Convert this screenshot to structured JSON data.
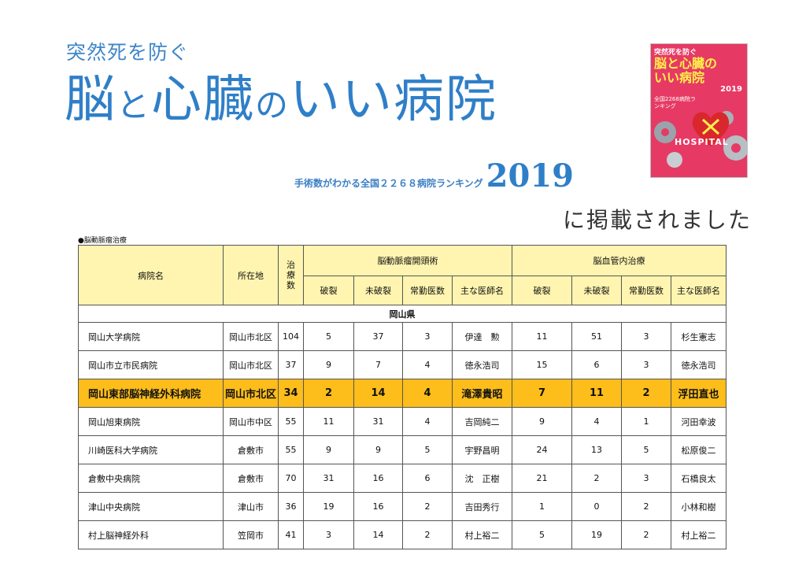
{
  "header": {
    "subtitle": "突然死を防ぐ",
    "title_part1": "脳",
    "title_part2": "と",
    "title_part3": "心臓",
    "title_part4": "の",
    "title_part5": "いい病院",
    "ranking_text": "手術数がわかる全国２２６８病院ランキング",
    "year": "2019",
    "published": "に掲載されました"
  },
  "cover": {
    "top_text": "突然死を防ぐ",
    "title_line1": "脳と心臓の",
    "title_line2": "いい病院",
    "year": "2019",
    "rank_text": "全国2268病院ランキング",
    "hospital_word": "HOSPITAL",
    "heart_color": "#d8282e",
    "accent_color": "#fff04a"
  },
  "section_label": "●脳動脈瘤治療",
  "table": {
    "headers": {
      "hospital": "病院名",
      "location": "所在地",
      "treatments": "治療数",
      "group1": "脳動脈瘤開頭術",
      "group2": "脳血管内治療",
      "rupture": "破裂",
      "unruptured": "未破裂",
      "staff": "常勤医数",
      "doctor": "主な医師名"
    },
    "prefecture": "岡山県",
    "rows": [
      {
        "name": "岡山大学病院",
        "loc": "岡山市北区",
        "n": "104",
        "c1": "5",
        "c2": "37",
        "c3": "3",
        "c4": "伊達　勲",
        "e1": "11",
        "e2": "51",
        "e3": "3",
        "e4": "杉生憲志"
      },
      {
        "name": "岡山市立市民病院",
        "loc": "岡山市北区",
        "n": "37",
        "c1": "9",
        "c2": "7",
        "c3": "4",
        "c4": "徳永浩司",
        "e1": "15",
        "e2": "6",
        "e3": "3",
        "e4": "徳永浩司"
      },
      {
        "name": "岡山東部脳神経外科病院",
        "loc": "岡山市北区",
        "n": "34",
        "c1": "2",
        "c2": "14",
        "c3": "4",
        "c4": "滝澤貴昭",
        "e1": "7",
        "e2": "11",
        "e3": "2",
        "e4": "浮田直也"
      },
      {
        "name": "岡山旭東病院",
        "loc": "岡山市中区",
        "n": "55",
        "c1": "11",
        "c2": "31",
        "c3": "4",
        "c4": "吉岡純二",
        "e1": "9",
        "e2": "4",
        "e3": "1",
        "e4": "河田幸波"
      },
      {
        "name": "川崎医科大学病院",
        "loc": "倉敷市",
        "n": "55",
        "c1": "9",
        "c2": "9",
        "c3": "5",
        "c4": "宇野昌明",
        "e1": "24",
        "e2": "13",
        "e3": "5",
        "e4": "松原俊二"
      },
      {
        "name": "倉敷中央病院",
        "loc": "倉敷市",
        "n": "70",
        "c1": "31",
        "c2": "16",
        "c3": "6",
        "c4": "沈　正樹",
        "e1": "21",
        "e2": "2",
        "e3": "3",
        "e4": "石橋良太"
      },
      {
        "name": "津山中央病院",
        "loc": "津山市",
        "n": "36",
        "c1": "19",
        "c2": "16",
        "c3": "2",
        "c4": "吉田秀行",
        "e1": "1",
        "e2": "0",
        "e3": "2",
        "e4": "小林和樹"
      },
      {
        "name": "村上脳神経外科",
        "loc": "笠岡市",
        "n": "41",
        "c1": "3",
        "c2": "14",
        "c3": "2",
        "c4": "村上裕二",
        "e1": "5",
        "e2": "19",
        "e3": "2",
        "e4": "村上裕二"
      }
    ]
  }
}
